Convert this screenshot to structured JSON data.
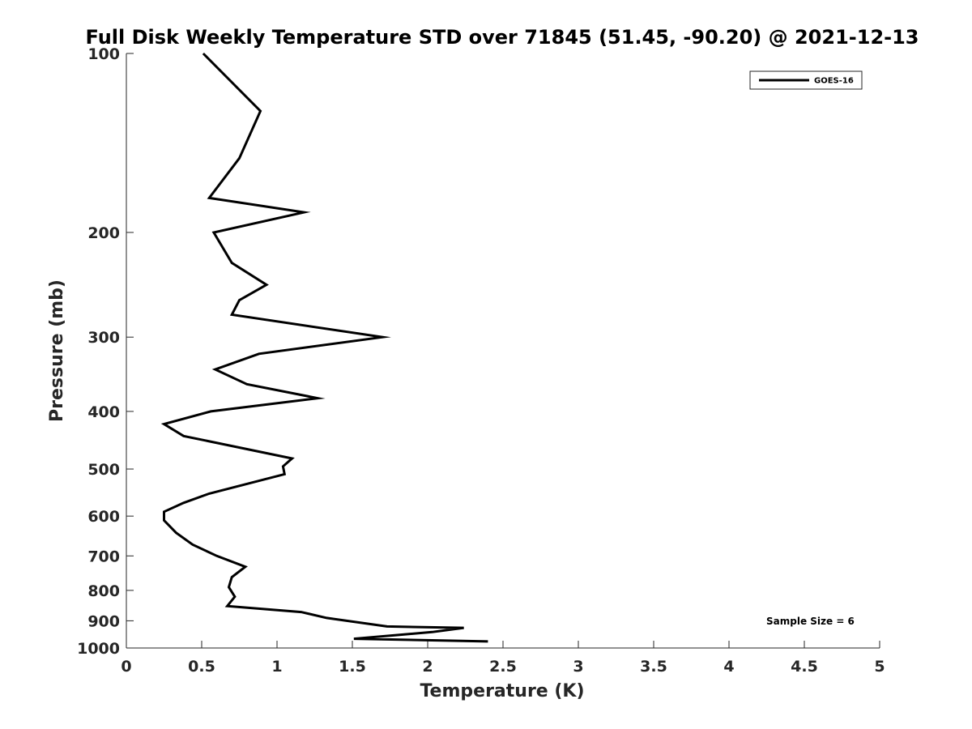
{
  "chart_data": {
    "type": "line",
    "title": "Full Disk Weekly Temperature STD over 71845 (51.45, -90.20) @ 2021-12-13",
    "xlabel": "Temperature (K)",
    "ylabel": "Pressure (mb)",
    "xlim": [
      0,
      5
    ],
    "ylim": [
      1000,
      100
    ],
    "yscale": "log",
    "y_reversed": true,
    "grid": false,
    "legend_position": "top-right",
    "x_ticks": [
      0,
      0.5,
      1,
      1.5,
      2,
      2.5,
      3,
      3.5,
      4,
      4.5,
      5
    ],
    "x_tick_labels": [
      "0",
      "0.5",
      "1",
      "1.5",
      "2",
      "2.5",
      "3",
      "3.5",
      "4",
      "4.5",
      "5"
    ],
    "y_ticks": [
      100,
      200,
      300,
      400,
      500,
      600,
      700,
      800,
      900,
      1000
    ],
    "y_tick_labels": [
      "100",
      "200",
      "300",
      "400",
      "500",
      "600",
      "700",
      "800",
      "900",
      "1000"
    ],
    "series": [
      {
        "name": "GOES-16",
        "color": "#000000",
        "points": [
          [
            0.51,
            100
          ],
          [
            0.89,
            125
          ],
          [
            0.75,
            150
          ],
          [
            0.55,
            175
          ],
          [
            1.18,
            185
          ],
          [
            0.58,
            200
          ],
          [
            0.7,
            225
          ],
          [
            0.93,
            245
          ],
          [
            0.75,
            260
          ],
          [
            0.7,
            275
          ],
          [
            1.7,
            300
          ],
          [
            0.88,
            320
          ],
          [
            0.59,
            340
          ],
          [
            0.8,
            360
          ],
          [
            1.27,
            380
          ],
          [
            0.56,
            400
          ],
          [
            0.25,
            420
          ],
          [
            0.38,
            440
          ],
          [
            1.1,
            480
          ],
          [
            1.04,
            495
          ],
          [
            1.05,
            510
          ],
          [
            0.55,
            550
          ],
          [
            0.38,
            570
          ],
          [
            0.25,
            590
          ],
          [
            0.25,
            610
          ],
          [
            0.33,
            640
          ],
          [
            0.44,
            670
          ],
          [
            0.6,
            700
          ],
          [
            0.79,
            730
          ],
          [
            0.7,
            760
          ],
          [
            0.68,
            790
          ],
          [
            0.72,
            820
          ],
          [
            0.67,
            850
          ],
          [
            1.16,
            870
          ],
          [
            1.33,
            890
          ],
          [
            1.73,
            920
          ],
          [
            2.24,
            925
          ],
          [
            2.03,
            940
          ],
          [
            1.51,
            965
          ],
          [
            2.4,
            975
          ]
        ]
      }
    ],
    "annotations": [
      {
        "text": "Sample Size = 6",
        "position": "bottom-right"
      }
    ]
  }
}
